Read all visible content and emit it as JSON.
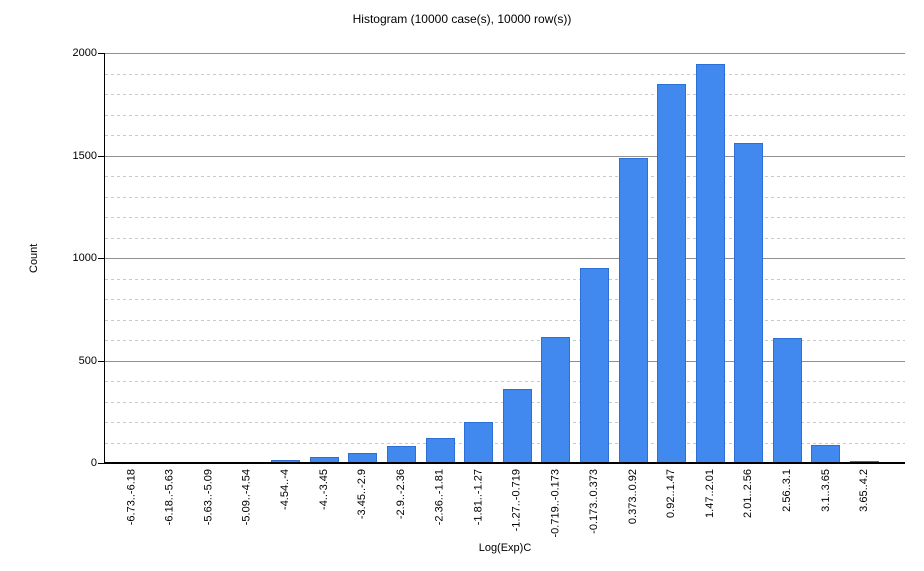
{
  "chart_data": {
    "type": "bar",
    "title": "Histogram (10000 case(s), 10000 row(s))",
    "xlabel": "Log(Exp)C",
    "ylabel": "Count",
    "categories": [
      "-6.73..-6.18",
      "-6.18..-5.63",
      "-5.63..-5.09",
      "-5.09..-4.54",
      "-4.54..-4",
      "-4..-3.45",
      "-3.45..-2.9",
      "-2.9..-2.36",
      "-2.36..-1.81",
      "-1.81..-1.27",
      "-1.27..-0.719",
      "-0.719..-0.173",
      "-0.173..0.373",
      "0.373..0.92",
      "0.92..1.47",
      "1.47..2.01",
      "2.01..2.56",
      "2.56..3.1",
      "3.1..3.65",
      "3.65..4.2"
    ],
    "values": [
      5,
      5,
      5,
      5,
      15,
      30,
      50,
      85,
      120,
      200,
      360,
      615,
      950,
      1490,
      1850,
      1945,
      1560,
      610,
      90,
      10
    ],
    "ylim": [
      0,
      2000
    ],
    "yticks": [
      0,
      500,
      1000,
      1500,
      2000
    ],
    "minor_grid_step": 100,
    "major_grid_step": 500,
    "grid": "on",
    "legend": "none",
    "colors": {
      "bar_fill": "#4189ee",
      "bar_border": "#2e6fd6",
      "grid_major": "#909090",
      "grid_minor": "#c9c9c9",
      "axis": "#000000",
      "background": "#ffffff",
      "text": "#000000"
    }
  }
}
